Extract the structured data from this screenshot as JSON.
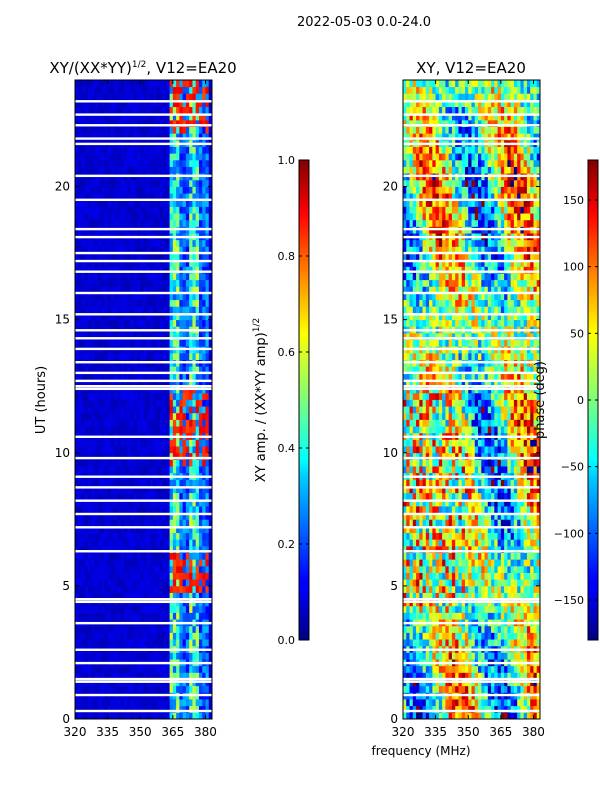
{
  "figure_title": "2022-05-03 0.0-24.0",
  "shared_xlabel": "frequency (MHz)",
  "chart_data": [
    {
      "type": "heatmap",
      "id": "amp",
      "title_main": "XY/(XX*YY)",
      "title_sup": "1/2",
      "title_tail": ", V12=EA20",
      "xlabel": "frequency (MHz)",
      "ylabel": "UT (hours)",
      "xlim": [
        320,
        383
      ],
      "ylim": [
        0,
        24
      ],
      "xticks": [
        320,
        335,
        350,
        365,
        380
      ],
      "yticks": [
        0,
        5,
        10,
        15,
        20
      ],
      "colorbar": {
        "label_main": "XY amp. / (XX*YY amp)",
        "label_sup": "1/2",
        "range": [
          0.0,
          1.0
        ],
        "ticks": [
          "0.0",
          "0.2",
          "0.4",
          "0.6",
          "0.8",
          "1.0"
        ],
        "tick_values": [
          0.0,
          0.2,
          0.4,
          0.6,
          0.8,
          1.0
        ],
        "colormap": "jet"
      },
      "background_value": 0.05,
      "active_band_mhz": [
        364,
        381
      ],
      "active_band_value_range": [
        0.2,
        0.6
      ],
      "hot_periods_hours": [
        [
          9.5,
          12.5
        ],
        [
          4.8,
          6.2
        ],
        [
          22.0,
          24.0
        ]
      ],
      "hot_value": 0.9,
      "flagged_hours": [
        0.3,
        0.9,
        1.4,
        1.5,
        2.1,
        2.6,
        3.6,
        4.4,
        4.5,
        6.3,
        7.2,
        7.7,
        8.2,
        8.7,
        9.1,
        9.8,
        10.6,
        12.4,
        12.5,
        12.7,
        13.0,
        13.4,
        13.9,
        14.3,
        14.6,
        15.2,
        16.0,
        16.8,
        17.2,
        17.5,
        18.1,
        18.4,
        19.5,
        20.4,
        21.6,
        21.8,
        22.3,
        22.7,
        23.2
      ]
    },
    {
      "type": "heatmap",
      "id": "phase",
      "title_main": "XY, V12=EA20",
      "title_sup": "",
      "title_tail": "",
      "xlabel": "frequency (MHz)",
      "ylabel": "",
      "xlim": [
        320,
        383
      ],
      "ylim": [
        0,
        24
      ],
      "xticks": [
        320,
        335,
        350,
        365,
        380
      ],
      "yticks": [
        0,
        5,
        10,
        15,
        20
      ],
      "colorbar": {
        "label_main": "phase (deg)",
        "label_sup": "",
        "range": [
          -180,
          180
        ],
        "ticks": [
          "−150",
          "−100",
          "−50",
          "0",
          "50",
          "100",
          "150"
        ],
        "tick_values": [
          -150,
          -100,
          -50,
          0,
          50,
          100,
          150
        ],
        "colormap": "jet"
      },
      "flagged_hours": [
        0.3,
        0.9,
        1.4,
        1.5,
        2.1,
        2.6,
        3.6,
        4.4,
        4.5,
        6.3,
        7.2,
        7.7,
        8.2,
        8.7,
        9.1,
        9.8,
        10.6,
        12.4,
        12.5,
        12.7,
        13.0,
        13.4,
        13.9,
        14.3,
        14.6,
        15.2,
        16.0,
        16.8,
        17.2,
        17.5,
        18.1,
        18.4,
        19.5,
        20.4,
        21.6,
        21.8,
        22.3,
        22.7,
        23.2
      ]
    }
  ]
}
